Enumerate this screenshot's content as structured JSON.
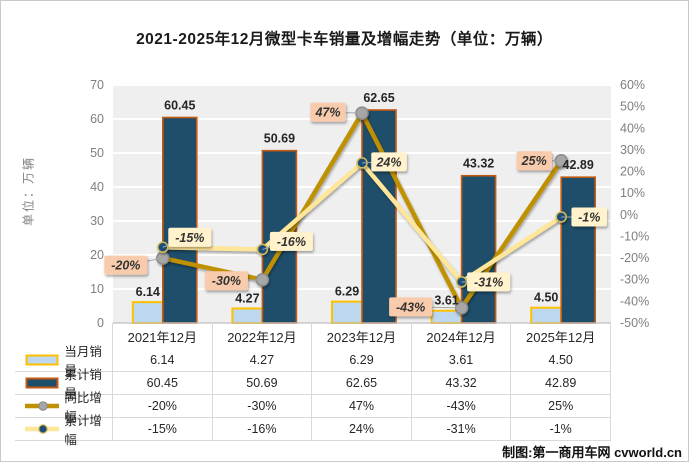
{
  "title": "2021-2025年12月微型卡车销量及增幅走势（单位：万辆）",
  "unit_axis_label": "单位：万辆",
  "credit": "制图:第一商用车网 cvworld.cn",
  "chart_data": {
    "type": "bar+line combo",
    "title": "2021-2025年12月微型卡车销量及增幅走势（单位：万辆）",
    "categories": [
      "2021年12月",
      "2022年12月",
      "2023年12月",
      "2024年12月",
      "2025年12月"
    ],
    "series": [
      {
        "name": "当月销量",
        "type": "bar",
        "axis": "left",
        "values": [
          6.14,
          4.27,
          6.29,
          3.61,
          4.5
        ],
        "labels": [
          "6.14",
          "4.27",
          "6.29",
          "3.61",
          "4.50"
        ],
        "fill": "#BDD7EE",
        "stroke": "#FFC000"
      },
      {
        "name": "累计销量",
        "type": "bar",
        "axis": "left",
        "values": [
          60.45,
          50.69,
          62.65,
          43.32,
          42.89
        ],
        "labels": [
          "60.45",
          "50.69",
          "62.65",
          "43.32",
          "42.89"
        ],
        "fill": "#1F4E6B",
        "stroke": "#C55A11"
      },
      {
        "name": "同比增幅",
        "type": "line",
        "axis": "right",
        "values": [
          -20,
          -30,
          47,
          -43,
          25
        ],
        "labels": [
          "-20%",
          "-30%",
          "47%",
          "-43%",
          "25%"
        ],
        "color": "#BF9000",
        "marker_fill": "#A6A6A6",
        "marker_stroke": "#8C8C8C",
        "label_bg": "#F8CBAD"
      },
      {
        "name": "累计增幅",
        "type": "line",
        "axis": "right",
        "values": [
          -15,
          -16,
          24,
          -31,
          -1
        ],
        "labels": [
          "-15%",
          "-16%",
          "24%",
          "-31%",
          "-1%"
        ],
        "color": "#FFE699",
        "marker_fill": "#1F4E79",
        "marker_stroke": "#D6BC5A",
        "label_bg": "#FFF2CC"
      }
    ],
    "left_axis": {
      "min": 0,
      "max": 70,
      "step": 10,
      "ticks": [
        "0",
        "10",
        "20",
        "30",
        "40",
        "50",
        "60",
        "70"
      ]
    },
    "right_axis": {
      "min": -50,
      "max": 60,
      "step": 10,
      "ticks": [
        "60%",
        "50%",
        "40%",
        "30%",
        "20%",
        "10%",
        "0%",
        "-10%",
        "-20%",
        "-30%",
        "-40%",
        "-50%"
      ]
    },
    "plot_bg": "#EFEFEF",
    "grid_color": "#FFFFFF",
    "legend_position": "bottom-table"
  },
  "table": {
    "columns": [
      "2021年12月",
      "2022年12月",
      "2023年12月",
      "2024年12月",
      "2025年12月"
    ],
    "rows": [
      {
        "label": "当月销量",
        "values": [
          "6.14",
          "4.27",
          "6.29",
          "3.61",
          "4.50"
        ]
      },
      {
        "label": "累计销量",
        "values": [
          "60.45",
          "50.69",
          "62.65",
          "43.32",
          "42.89"
        ]
      },
      {
        "label": "同比增幅",
        "values": [
          "-20%",
          "-30%",
          "47%",
          "-43%",
          "25%"
        ]
      },
      {
        "label": "累计增幅",
        "values": [
          "-15%",
          "-16%",
          "24%",
          "-31%",
          "-1%"
        ]
      }
    ]
  },
  "colors": {
    "monthly_bar": "#BDD7EE",
    "monthly_bar_border": "#FFC000",
    "cumulative_bar": "#1F4E6B",
    "cumulative_bar_border": "#C55A11",
    "yoy_line": "#BF9000",
    "cum_growth_line": "#FFE699",
    "yoy_label_bg": "#F8CBAD",
    "cum_label_bg": "#FFF2CC",
    "axis_text": "#7F7F7F",
    "grid": "#FFFFFF",
    "plot_bg": "#EFEFEF"
  }
}
